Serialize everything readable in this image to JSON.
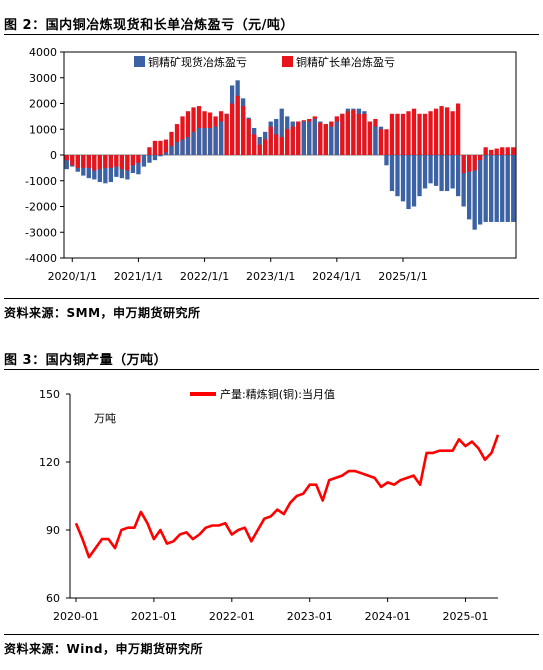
{
  "figure2": {
    "title": "图 2：国内铜冶炼现货和长单冶炼盈亏（元/吨）",
    "source": "资料来源：SMM，申万期货研究所"
  },
  "figure3": {
    "title": "图 3：国内铜产量（万吨）",
    "source": "资料来源：Wind，申万期货研究所"
  },
  "chart_data": [
    {
      "type": "bar",
      "ylim": [
        -4000,
        4000
      ],
      "yticks": [
        -4000,
        -3000,
        -2000,
        -1000,
        0,
        1000,
        2000,
        3000,
        4000
      ],
      "xticks": [
        "2020/1/1",
        "2021/1/1",
        "2022/1/1",
        "2023/1/1",
        "2024/1/1",
        "2025/1/1"
      ],
      "x_start": "2019-12",
      "legend_position": "top",
      "colors": {
        "spot": "#3b62a4",
        "long": "#e8141c"
      },
      "series": [
        {
          "name": "铜精矿现货冶炼盈亏",
          "values": [
            -550,
            -450,
            -650,
            -800,
            -900,
            -950,
            -1050,
            -1100,
            -1050,
            -850,
            -900,
            -950,
            -700,
            -750,
            -450,
            -300,
            -200,
            -50,
            100,
            350,
            500,
            600,
            700,
            900,
            1050,
            1050,
            1050,
            1100,
            1300,
            1600,
            2700,
            2900,
            2200,
            1450,
            1050,
            700,
            900,
            1300,
            1400,
            1800,
            1500,
            1300,
            1300,
            1300,
            1300,
            1400,
            1300,
            1200,
            1100,
            1300,
            1600,
            1800,
            1800,
            1800,
            1700,
            1300,
            1100,
            1100,
            -400,
            -1400,
            -1600,
            -1800,
            -2100,
            -2000,
            -1600,
            -1300,
            -1100,
            -1200,
            -1400,
            -1400,
            -1300,
            -1600,
            -2000,
            -2500,
            -2900,
            -2700,
            -2600,
            -2600,
            -2600,
            -2600,
            -2600,
            -2600
          ]
        },
        {
          "name": "铜精矿长单冶炼盈亏",
          "values": [
            -200,
            -400,
            -500,
            -500,
            -500,
            -600,
            -550,
            -500,
            -500,
            -450,
            -550,
            -600,
            -400,
            -300,
            0,
            300,
            550,
            550,
            600,
            900,
            1200,
            1500,
            1700,
            1850,
            1900,
            1700,
            1650,
            1500,
            1700,
            1600,
            2000,
            2300,
            1900,
            1400,
            800,
            400,
            600,
            1100,
            800,
            700,
            1000,
            1100,
            1300,
            1350,
            1400,
            1500,
            1250,
            1200,
            1300,
            1500,
            1600,
            1700,
            1750,
            1600,
            1600,
            1300,
            1400,
            1000,
            1000,
            1600,
            1600,
            1600,
            1700,
            1800,
            1600,
            1600,
            1700,
            1800,
            1900,
            1850,
            1700,
            2000,
            -700,
            -650,
            -600,
            -200,
            300,
            200,
            250,
            300,
            300,
            300
          ]
        }
      ]
    },
    {
      "type": "line",
      "ylim": [
        60,
        150
      ],
      "yticks": [
        60,
        90,
        120,
        150
      ],
      "ylabel": "万吨",
      "xticks": [
        "2020-01",
        "2021-01",
        "2022-01",
        "2023-01",
        "2024-01",
        "2025-01"
      ],
      "x_start": "2020-01",
      "legend_position": "top",
      "color": "#ff0000",
      "series": [
        {
          "name": "产量:精炼铜(铜):当月值",
          "values": [
            93,
            86,
            78,
            82,
            86,
            86,
            82,
            90,
            91,
            91,
            98,
            93,
            86,
            90,
            84,
            85,
            88,
            89,
            86,
            88,
            91,
            92,
            92,
            93,
            88,
            90,
            91,
            85,
            90,
            95,
            96,
            99,
            97,
            102,
            105,
            106,
            110,
            110,
            103,
            112,
            113,
            114,
            116,
            116,
            115,
            114,
            113,
            109,
            111,
            110,
            112,
            113,
            114,
            110,
            124,
            124,
            125,
            125,
            125,
            130,
            127,
            129,
            126,
            121,
            124,
            132
          ]
        }
      ]
    }
  ]
}
